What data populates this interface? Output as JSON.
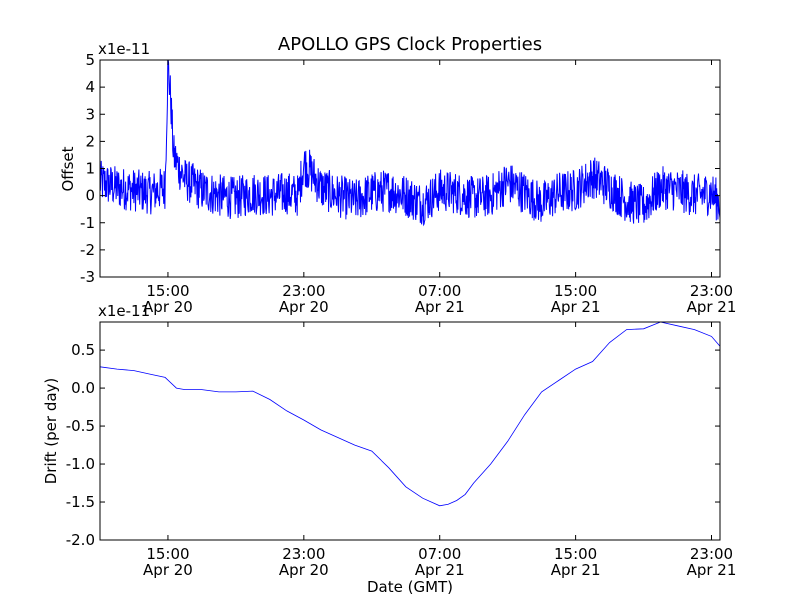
{
  "chart_data": [
    {
      "type": "line",
      "title": "APOLLO GPS Clock Properties",
      "ylabel": "Offset",
      "xlabel": "",
      "y_scale_label": "x1e-11",
      "ylim": [
        -3,
        5
      ],
      "y_ticks": [
        -3,
        -2,
        -1,
        0,
        1,
        2,
        3,
        4,
        5
      ],
      "y_tick_labels": [
        "-3",
        "-2",
        "-1",
        "0",
        "1",
        "2",
        "3",
        "4",
        "5"
      ],
      "xlim": [
        "Apr 20 11:00",
        "Apr 21 23:30"
      ],
      "x_ticks": [
        "Apr 20 15:00",
        "Apr 20 23:00",
        "Apr 21 07:00",
        "Apr 21 15:00",
        "Apr 21 23:00"
      ],
      "x_tick_labels": [
        {
          "time": "15:00",
          "date": "Apr 20"
        },
        {
          "time": "23:00",
          "date": "Apr 20"
        },
        {
          "time": "07:00",
          "date": "Apr 21"
        },
        {
          "time": "15:00",
          "date": "Apr 21"
        },
        {
          "time": "23:00",
          "date": "Apr 21"
        }
      ],
      "grid": false,
      "color": "#0000ff",
      "series": [
        {
          "x": [
            "Apr 20 11:00",
            "Apr 20 12:00",
            "Apr 20 13:00",
            "Apr 20 14:00",
            "Apr 20 14:50",
            "Apr 20 15:00",
            "Apr 20 15:10",
            "Apr 20 15:20",
            "Apr 20 15:40",
            "Apr 20 16:00",
            "Apr 20 17:00",
            "Apr 20 18:00",
            "Apr 20 19:00",
            "Apr 20 20:00",
            "Apr 20 21:00",
            "Apr 20 22:00",
            "Apr 20 22:40",
            "Apr 20 23:00",
            "Apr 20 23:30",
            "Apr 21 00:00",
            "Apr 21 01:00",
            "Apr 21 02:00",
            "Apr 21 03:00",
            "Apr 21 04:00",
            "Apr 21 05:00",
            "Apr 21 06:00",
            "Apr 21 07:00",
            "Apr 21 08:00",
            "Apr 21 09:00",
            "Apr 21 10:00",
            "Apr 21 11:00",
            "Apr 21 12:00",
            "Apr 21 13:00",
            "Apr 21 14:00",
            "Apr 21 15:00",
            "Apr 21 16:00",
            "Apr 21 17:00",
            "Apr 21 18:00",
            "Apr 21 19:00",
            "Apr 21 20:00",
            "Apr 21 21:00",
            "Apr 21 22:00",
            "Apr 21 23:00",
            "Apr 21 23:30"
          ],
          "y": [
            0.5,
            0.3,
            0.2,
            0.1,
            0.3,
            4.9,
            3.5,
            1.5,
            1.0,
            0.6,
            0.2,
            0.0,
            -0.1,
            0.1,
            0.0,
            0.1,
            0.0,
            1.2,
            0.8,
            0.3,
            0.0,
            -0.2,
            0.1,
            0.2,
            0.0,
            -0.3,
            0.2,
            0.1,
            -0.1,
            0.0,
            0.5,
            0.1,
            -0.3,
            0.1,
            0.2,
            0.7,
            0.3,
            -0.2,
            -0.4,
            0.3,
            0.2,
            0.0,
            0.1,
            -0.3
          ]
        }
      ]
    },
    {
      "type": "line",
      "title": "",
      "ylabel": "Drift (per day)",
      "xlabel": "Date (GMT)",
      "y_scale_label": "x1e-11",
      "ylim": [
        -2.0,
        0.87
      ],
      "y_ticks": [
        -2.0,
        -1.5,
        -1.0,
        -0.5,
        0.0,
        0.5
      ],
      "y_tick_labels": [
        "-2.0",
        "-1.5",
        "-1.0",
        "-0.5",
        "0.0",
        "0.5"
      ],
      "xlim": [
        "Apr 20 11:00",
        "Apr 21 23:30"
      ],
      "x_ticks": [
        "Apr 20 15:00",
        "Apr 20 23:00",
        "Apr 21 07:00",
        "Apr 21 15:00",
        "Apr 21 23:00"
      ],
      "x_tick_labels": [
        {
          "time": "15:00",
          "date": "Apr 20"
        },
        {
          "time": "23:00",
          "date": "Apr 20"
        },
        {
          "time": "07:00",
          "date": "Apr 21"
        },
        {
          "time": "15:00",
          "date": "Apr 21"
        },
        {
          "time": "23:00",
          "date": "Apr 21"
        }
      ],
      "grid": false,
      "color": "#0000ff",
      "series": [
        {
          "x": [
            "Apr 20 11:00",
            "Apr 20 12:00",
            "Apr 20 13:00",
            "Apr 20 14:00",
            "Apr 20 14:50",
            "Apr 20 15:30",
            "Apr 20 16:00",
            "Apr 20 17:00",
            "Apr 20 18:00",
            "Apr 20 19:00",
            "Apr 20 20:00",
            "Apr 20 21:00",
            "Apr 20 22:00",
            "Apr 20 23:00",
            "Apr 21 00:00",
            "Apr 21 01:00",
            "Apr 21 02:00",
            "Apr 21 03:00",
            "Apr 21 04:00",
            "Apr 21 05:00",
            "Apr 21 06:00",
            "Apr 21 07:00",
            "Apr 21 07:30",
            "Apr 21 08:00",
            "Apr 21 08:30",
            "Apr 21 09:00",
            "Apr 21 10:00",
            "Apr 21 11:00",
            "Apr 21 12:00",
            "Apr 21 13:00",
            "Apr 21 14:00",
            "Apr 21 15:00",
            "Apr 21 16:00",
            "Apr 21 17:00",
            "Apr 21 18:00",
            "Apr 21 19:00",
            "Apr 21 20:00",
            "Apr 21 21:00",
            "Apr 21 22:00",
            "Apr 21 23:00",
            "Apr 21 23:30"
          ],
          "y": [
            0.28,
            0.25,
            0.23,
            0.18,
            0.14,
            0.0,
            -0.02,
            -0.02,
            -0.05,
            -0.05,
            -0.04,
            -0.15,
            -0.3,
            -0.42,
            -0.55,
            -0.65,
            -0.75,
            -0.83,
            -1.05,
            -1.3,
            -1.45,
            -1.55,
            -1.53,
            -1.48,
            -1.4,
            -1.25,
            -1.0,
            -0.7,
            -0.35,
            -0.05,
            0.1,
            0.25,
            0.35,
            0.6,
            0.77,
            0.78,
            0.87,
            0.82,
            0.77,
            0.68,
            0.55
          ]
        }
      ]
    }
  ]
}
